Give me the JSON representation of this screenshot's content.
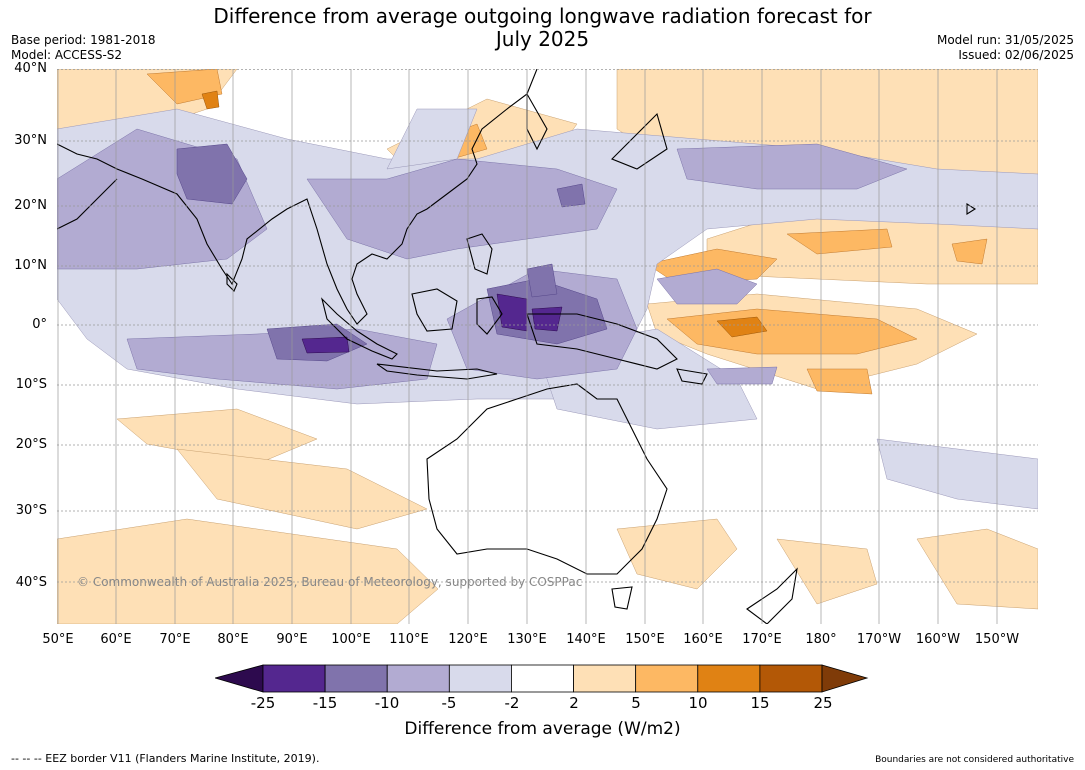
{
  "title_line1": "Difference from average outgoing longwave radiation forecast for",
  "title_line2": "July 2025",
  "base_period": "Base period: 1981-2018",
  "model": "Model: ACCESS-S2",
  "model_run": "Model run: 31/05/2025",
  "issued": "Issued: 02/06/2025",
  "lat_labels": [
    "40°N",
    "30°N",
    "20°N",
    "10°N",
    "0°",
    "10°S",
    "20°S",
    "30°S",
    "40°S"
  ],
  "lon_labels": [
    "50°E",
    "60°E",
    "70°E",
    "80°E",
    "90°E",
    "100°E",
    "110°E",
    "120°E",
    "130°E",
    "140°E",
    "150°E",
    "160°E",
    "170°E",
    "180°",
    "170°W",
    "160°W",
    "150°W"
  ],
  "copyright": "© Commonwealth of Australia 2025, Bureau of Meteorology, supported by COSPPac",
  "colorbar": {
    "title": "Difference from average (W/m2)",
    "ticks": [
      "-25",
      "-15",
      "-10",
      "-5",
      "-2",
      "2",
      "5",
      "10",
      "15",
      "25"
    ],
    "colors": [
      "#2d0a4e",
      "#54278f",
      "#8073ac",
      "#b2abd2",
      "#d8daeb",
      "#ffffff",
      "#fee0b6",
      "#fdb863",
      "#e08214",
      "#b35806",
      "#7f3b08"
    ]
  },
  "eez_note": "--  --  -- EEZ border V11 (Flanders Marine Institute, 2019).",
  "boundary_note": "Boundaries are not considered authoritative"
}
